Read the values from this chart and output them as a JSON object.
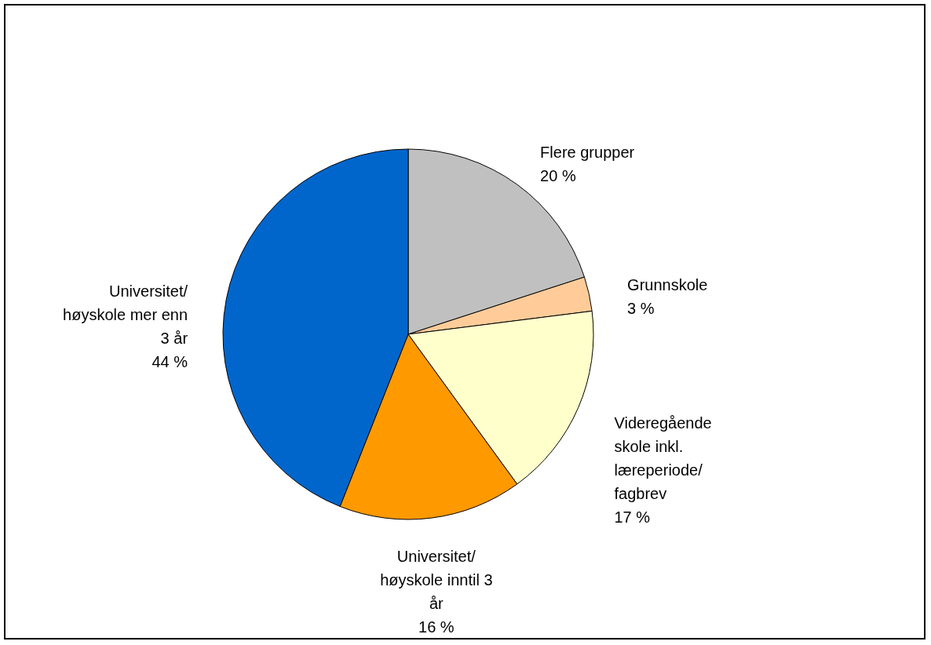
{
  "chart_data": {
    "type": "pie",
    "categories": [
      "Flere grupper",
      "Grunnskole",
      "Videregående\nskole inkl.\nlæreperiode/\nfagbrev",
      "Universitet/\nhøyskole inntil 3\når",
      "Universitet/\nhøyskole mer enn\n3 år"
    ],
    "values": [
      20,
      3,
      17,
      16,
      44
    ],
    "value_labels": [
      "20 %",
      "3 %",
      "17 %",
      "16 %",
      "44 %"
    ],
    "colors": [
      "#c0c0c0",
      "#ffcc99",
      "#ffffcc",
      "#ff9900",
      "#0066cc"
    ]
  }
}
